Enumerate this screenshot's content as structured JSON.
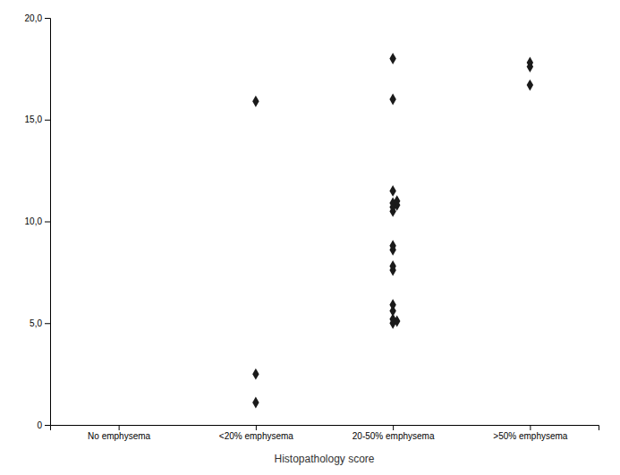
{
  "chart_data": {
    "type": "strip",
    "categories": [
      "No emphysema",
      "<20% emphysema",
      "20-50% emphysema",
      ">50% emphysema"
    ],
    "values": [
      [],
      [
        1.1,
        2.5,
        15.9
      ],
      [
        5.0,
        5.1,
        5.2,
        5.6,
        5.9,
        7.6,
        7.8,
        8.6,
        8.8,
        10.5,
        10.7,
        10.8,
        10.9,
        11.0,
        11.5,
        16.0,
        18.0
      ],
      [
        16.7,
        17.6,
        17.8
      ]
    ],
    "xlabel": "Histopathology score",
    "ylim": [
      0,
      20
    ],
    "yticks": [
      0,
      {
        "value": 5.0,
        "label": "5,0"
      },
      {
        "value": 10.0,
        "label": "10,0"
      },
      {
        "value": 15.0,
        "label": "15,0"
      },
      {
        "value": 20.0,
        "label": "20,0"
      }
    ],
    "marker": "diamond",
    "color": "#1a1a1a",
    "grid": false
  }
}
